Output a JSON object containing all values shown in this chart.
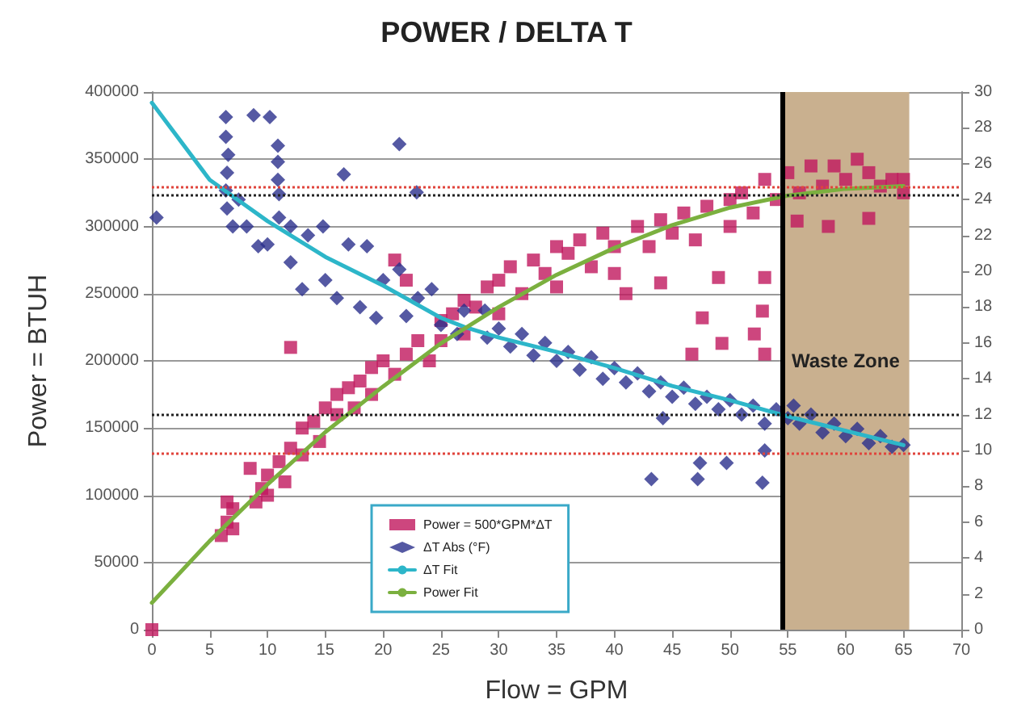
{
  "chart_data": {
    "type": "scatter",
    "title": "POWER / DELTA T",
    "xlabel": "Flow = GPM",
    "ylabel": "Power = BTUH",
    "xlim": [
      0,
      70
    ],
    "xticks": [
      0,
      5,
      10,
      15,
      20,
      25,
      30,
      35,
      40,
      45,
      50,
      55,
      60,
      65,
      70
    ],
    "ylim": [
      0,
      400000
    ],
    "yticks": [
      0,
      50000,
      100000,
      150000,
      200000,
      250000,
      300000,
      350000,
      400000
    ],
    "y2lim": [
      0,
      30
    ],
    "y2ticks": [
      0,
      2,
      4,
      6,
      8,
      10,
      12,
      14,
      16,
      18,
      20,
      22,
      24,
      26,
      28,
      30
    ],
    "grid": "y",
    "legend": "bottom",
    "series": [
      {
        "name": "Power = 500*GPM*ΔT",
        "marker": "square",
        "color": "#c0185e",
        "x": [
          0,
          6,
          6.5,
          7,
          7,
          6.5,
          8.5,
          9,
          9.5,
          10,
          10,
          11,
          11.5,
          12,
          12,
          13,
          13,
          14,
          14.5,
          15,
          16,
          16,
          17,
          17.5,
          18,
          19,
          19,
          20,
          21,
          21,
          22,
          22,
          23,
          24,
          25,
          25,
          26,
          27,
          27,
          28,
          29,
          30,
          30,
          31,
          32,
          33,
          34,
          35,
          35,
          36,
          37,
          38,
          39,
          40,
          40,
          41,
          42,
          43,
          44,
          44,
          45,
          46,
          46.7,
          47,
          47.6,
          48,
          49,
          49.3,
          50,
          50,
          51,
          52,
          52.1,
          52.8,
          53,
          53,
          53,
          54,
          55,
          55.8,
          56,
          57,
          58,
          58.5,
          59,
          60,
          61,
          62,
          62,
          63,
          64,
          65,
          65
        ],
        "values": [
          0,
          70000,
          80000,
          90000,
          75000,
          95000,
          120000,
          95000,
          105000,
          115000,
          100000,
          125000,
          110000,
          135000,
          210000,
          150000,
          130000,
          155000,
          140000,
          165000,
          160000,
          175000,
          180000,
          165000,
          185000,
          175000,
          195000,
          200000,
          190000,
          275000,
          260000,
          205000,
          215000,
          200000,
          230000,
          215000,
          235000,
          245000,
          220000,
          240000,
          255000,
          260000,
          235000,
          270000,
          250000,
          275000,
          265000,
          285000,
          255000,
          280000,
          290000,
          270000,
          295000,
          285000,
          265000,
          250000,
          300000,
          285000,
          258000,
          305000,
          295000,
          310000,
          205000,
          290000,
          232000,
          315000,
          262000,
          213000,
          320000,
          300000,
          325000,
          310000,
          220000,
          237000,
          205000,
          262000,
          335000,
          320000,
          340000,
          304000,
          325000,
          345000,
          330000,
          300000,
          345000,
          335000,
          350000,
          306000,
          340000,
          330000,
          335000,
          325000,
          335000
        ]
      },
      {
        "name": "ΔT Abs (°F)",
        "marker": "diamond",
        "color": "#2b2f8c",
        "axis": "y2",
        "x": [
          0.4,
          6.4,
          6.4,
          6.6,
          6.5,
          6.4,
          6.5,
          7,
          7.5,
          8.2,
          8.8,
          9.2,
          10,
          10.2,
          10.9,
          10.9,
          10.9,
          11,
          11,
          12,
          12,
          13,
          13.5,
          14.8,
          15,
          16,
          16.6,
          17,
          18,
          18.6,
          19.4,
          20,
          21.4,
          21.4,
          22,
          22.9,
          23,
          24.2,
          25,
          26.4,
          27,
          28.8,
          29,
          30,
          31,
          32,
          33,
          34,
          35,
          36,
          37,
          38,
          39,
          40,
          41,
          42,
          43,
          44,
          44.2,
          43.2,
          45,
          46,
          47,
          47.2,
          47.4,
          48,
          49,
          49.7,
          50,
          51,
          52,
          52.8,
          53,
          53,
          54,
          55,
          55.5,
          56,
          57,
          58,
          59,
          60,
          61,
          62,
          63,
          64,
          65
        ],
        "values": [
          23,
          28.6,
          27.5,
          26.5,
          25.5,
          24.5,
          23.5,
          22.5,
          24,
          22.5,
          28.7,
          21.4,
          21.5,
          28.6,
          27,
          26.1,
          25.1,
          24.3,
          23,
          20.5,
          22.5,
          19,
          22,
          22.5,
          19.5,
          18.5,
          25.4,
          21.5,
          18,
          21.4,
          17.4,
          19.5,
          27.1,
          20.1,
          17.5,
          24.4,
          18.5,
          19,
          17,
          16.5,
          17.8,
          17.8,
          16.3,
          16.8,
          15.8,
          16.5,
          15.3,
          16,
          15,
          15.5,
          14.5,
          15.2,
          14,
          14.6,
          13.8,
          14.3,
          13.3,
          13.8,
          11.8,
          8.4,
          13,
          13.5,
          12.6,
          8.4,
          9.3,
          13,
          12.3,
          9.3,
          12.8,
          12,
          12.5,
          8.2,
          10,
          11.5,
          12.3,
          11.8,
          12.5,
          11.5,
          12,
          11,
          11.5,
          10.8,
          11.2,
          10.4,
          10.8,
          10.2,
          10.3
        ]
      },
      {
        "name": "ΔT Fit",
        "type": "line",
        "marker": "none",
        "color": "#2db6c9",
        "axis": "y2",
        "x": [
          0,
          5,
          10,
          15,
          20,
          25,
          27,
          30,
          35,
          40,
          45,
          50,
          55,
          60,
          65
        ],
        "values": [
          29.4,
          25.1,
          22.8,
          20.8,
          19.2,
          17.4,
          16.9,
          16.3,
          15.5,
          14.6,
          13.6,
          12.8,
          11.9,
          11.1,
          10.3
        ]
      },
      {
        "name": "Power Fit",
        "type": "line",
        "marker": "none",
        "color": "#7bb03f",
        "x": [
          0,
          5,
          10,
          15,
          20,
          25,
          30,
          35,
          40,
          45,
          50,
          55,
          60,
          65
        ],
        "values": [
          20000,
          66000,
          108000,
          147000,
          181000,
          213000,
          240000,
          264000,
          284000,
          301000,
          314000,
          323000,
          328000,
          330000
        ]
      }
    ],
    "ref_lines": [
      {
        "axis": "y",
        "value": 329000,
        "color": "#e0443c",
        "line_style": "dotted"
      },
      {
        "axis": "y",
        "value": 324000,
        "color": "#222222",
        "line_style": "dotted"
      },
      {
        "axis": "y2",
        "value": 12,
        "color": "#222222",
        "line_style": "dotted"
      },
      {
        "axis": "y2",
        "value": 9.8,
        "color": "#e0443c",
        "line_style": "dotted"
      },
      {
        "axis": "x",
        "value": 54.5,
        "color": "#000000",
        "line_style": "solid"
      }
    ],
    "bands": [
      {
        "axis": "x",
        "from": 54.5,
        "to": 65.5,
        "label": "Waste Zone",
        "color": "#c9b08f"
      }
    ]
  }
}
